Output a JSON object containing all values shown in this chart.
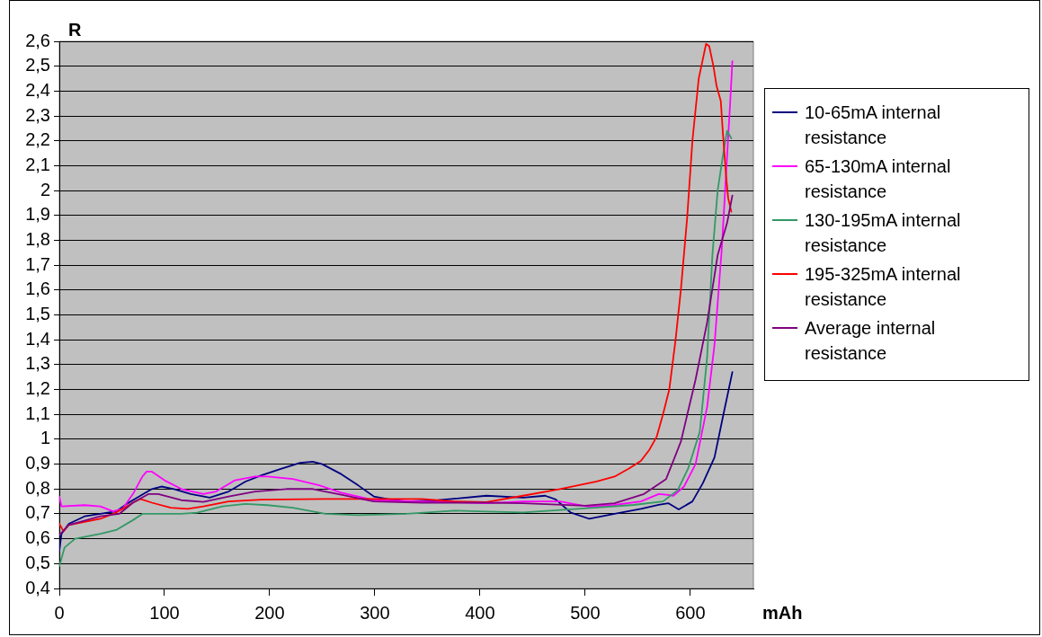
{
  "chart_data": {
    "type": "line",
    "xlabel": "mAh",
    "ylabel": "R",
    "xlim": [
      0,
      660
    ],
    "xticks": [
      0,
      100,
      200,
      300,
      400,
      500,
      600
    ],
    "ylim": [
      0.4,
      2.6
    ],
    "yticks": [
      {
        "value": 0.4,
        "label": "0,4"
      },
      {
        "value": 0.5,
        "label": "0,5"
      },
      {
        "value": 0.6,
        "label": "0,6"
      },
      {
        "value": 0.7,
        "label": "0,7"
      },
      {
        "value": 0.8,
        "label": "0,8"
      },
      {
        "value": 0.9,
        "label": "0,9"
      },
      {
        "value": 1,
        "label": "1"
      },
      {
        "value": 1.1,
        "label": "1,1"
      },
      {
        "value": 1.2,
        "label": "1,2"
      },
      {
        "value": 1.3,
        "label": "1,3"
      },
      {
        "value": 1.4,
        "label": "1,4"
      },
      {
        "value": 1.5,
        "label": "1,5"
      },
      {
        "value": 1.6,
        "label": "1,6"
      },
      {
        "value": 1.7,
        "label": "1,7"
      },
      {
        "value": 1.8,
        "label": "1,8"
      },
      {
        "value": 1.9,
        "label": "1,9"
      },
      {
        "value": 2,
        "label": "2"
      },
      {
        "value": 2.1,
        "label": "2,1"
      },
      {
        "value": 2.2,
        "label": "2,2"
      },
      {
        "value": 2.3,
        "label": "2,3"
      },
      {
        "value": 2.4,
        "label": "2,4"
      },
      {
        "value": 2.5,
        "label": "2,5"
      },
      {
        "value": 2.6,
        "label": "2,6"
      }
    ],
    "grid": "y",
    "legend": "right",
    "marker": "none",
    "line_style": "solid",
    "series": [
      {
        "name": "10-65mA internal resistance",
        "color": "#000080",
        "x": [
          0,
          2,
          9,
          24,
          39,
          54,
          64,
          76,
          88,
          97,
          109,
          125,
          143,
          161,
          177,
          192,
          210,
          229,
          241,
          250,
          268,
          284,
          299,
          314,
          330,
          360,
          406,
          441,
          462,
          472,
          486,
          504,
          528,
          553,
          570,
          579,
          589,
          602,
          612,
          623,
          631,
          640
        ],
        "values": [
          0.55,
          0.62,
          0.66,
          0.69,
          0.7,
          0.71,
          0.74,
          0.77,
          0.8,
          0.81,
          0.8,
          0.78,
          0.765,
          0.79,
          0.83,
          0.855,
          0.88,
          0.905,
          0.91,
          0.9,
          0.86,
          0.815,
          0.77,
          0.758,
          0.75,
          0.755,
          0.773,
          0.765,
          0.773,
          0.758,
          0.706,
          0.68,
          0.7,
          0.72,
          0.736,
          0.743,
          0.718,
          0.75,
          0.824,
          0.927,
          1.09,
          1.27
        ]
      },
      {
        "name": "65-130mA internal resistance",
        "color": "#ff00ff",
        "x": [
          0,
          2,
          24,
          39,
          51,
          60,
          70,
          79,
          83,
          88,
          100,
          116,
          137,
          149,
          167,
          186,
          198,
          222,
          247,
          268,
          299,
          345,
          406,
          441,
          476,
          504,
          528,
          553,
          570,
          577,
          584,
          594,
          605,
          616,
          623,
          630,
          635,
          638,
          640
        ],
        "values": [
          0.77,
          0.73,
          0.735,
          0.73,
          0.71,
          0.72,
          0.78,
          0.85,
          0.87,
          0.87,
          0.835,
          0.8,
          0.78,
          0.79,
          0.835,
          0.85,
          0.85,
          0.84,
          0.815,
          0.785,
          0.755,
          0.75,
          0.743,
          0.75,
          0.75,
          0.728,
          0.736,
          0.75,
          0.78,
          0.777,
          0.773,
          0.81,
          0.9,
          1.13,
          1.38,
          1.77,
          2.14,
          2.36,
          2.52
        ]
      },
      {
        "name": "130-195mA internal resistance",
        "color": "#339966",
        "x": [
          0,
          5,
          15,
          39,
          54,
          70,
          79,
          116,
          131,
          155,
          177,
          198,
          222,
          253,
          284,
          330,
          376,
          406,
          441,
          493,
          546,
          574,
          588,
          598,
          609,
          616,
          621,
          626,
          631,
          635,
          639
        ],
        "values": [
          0.49,
          0.565,
          0.6,
          0.62,
          0.635,
          0.675,
          0.7,
          0.7,
          0.705,
          0.73,
          0.74,
          0.735,
          0.725,
          0.7,
          0.695,
          0.7,
          0.713,
          0.709,
          0.706,
          0.72,
          0.736,
          0.75,
          0.795,
          0.883,
          1.03,
          1.33,
          1.74,
          2,
          2.14,
          2.24,
          2.21
        ]
      },
      {
        "name": "195-325mA internal resistance",
        "color": "#ff0000",
        "x": [
          0,
          4,
          9,
          39,
          54,
          70,
          77,
          88,
          106,
          122,
          137,
          161,
          192,
          253,
          299,
          345,
          376,
          406,
          441,
          476,
          511,
          528,
          542,
          553,
          561,
          568,
          574,
          580,
          586,
          591,
          597,
          602,
          608,
          612,
          615,
          618,
          622,
          625,
          629,
          631,
          634,
          636,
          639
        ],
        "values": [
          0.66,
          0.63,
          0.655,
          0.68,
          0.705,
          0.745,
          0.76,
          0.745,
          0.725,
          0.72,
          0.73,
          0.75,
          0.757,
          0.76,
          0.76,
          0.76,
          0.75,
          0.747,
          0.773,
          0.8,
          0.83,
          0.85,
          0.883,
          0.913,
          0.957,
          1.01,
          1.1,
          1.2,
          1.4,
          1.6,
          1.89,
          2.2,
          2.45,
          2.53,
          2.59,
          2.58,
          2.5,
          2.42,
          2.36,
          2.23,
          2.06,
          1.97,
          1.915
        ]
      },
      {
        "name": "Average internal resistance",
        "color": "#800080",
        "x": [
          0,
          9,
          39,
          57,
          70,
          85,
          94,
          116,
          137,
          161,
          186,
          216,
          241,
          268,
          299,
          345,
          406,
          441,
          500,
          528,
          556,
          577,
          591,
          605,
          616,
          626,
          635,
          640
        ],
        "values": [
          0.615,
          0.655,
          0.69,
          0.7,
          0.745,
          0.78,
          0.78,
          0.755,
          0.748,
          0.77,
          0.79,
          0.8,
          0.8,
          0.777,
          0.75,
          0.745,
          0.745,
          0.743,
          0.733,
          0.743,
          0.78,
          0.84,
          0.99,
          1.24,
          1.47,
          1.74,
          1.87,
          1.98
        ]
      }
    ]
  }
}
